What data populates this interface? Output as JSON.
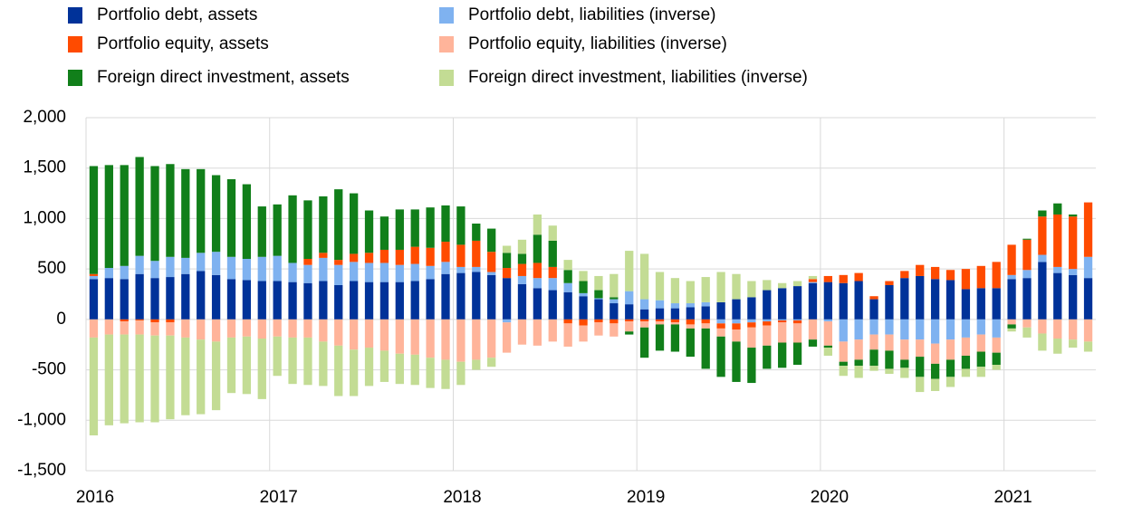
{
  "chart_data": {
    "type": "stacked-bar",
    "categories": [
      "2016",
      null,
      null,
      null,
      null,
      null,
      null,
      null,
      null,
      null,
      null,
      null,
      "2017",
      null,
      null,
      null,
      null,
      null,
      null,
      null,
      null,
      null,
      null,
      null,
      "2018",
      null,
      null,
      null,
      null,
      null,
      null,
      null,
      null,
      null,
      null,
      null,
      "2019",
      null,
      null,
      null,
      null,
      null,
      null,
      null,
      null,
      null,
      null,
      null,
      "2020",
      null,
      null,
      null,
      null,
      null,
      null,
      null,
      null,
      null,
      null,
      null,
      "2021",
      null,
      null,
      null,
      null,
      null
    ],
    "series": [
      {
        "name": "Portfolio debt, assets",
        "color": "#003299",
        "values": [
          400,
          410,
          400,
          450,
          410,
          420,
          450,
          480,
          440,
          400,
          390,
          380,
          380,
          370,
          360,
          380,
          340,
          380,
          370,
          370,
          370,
          380,
          400,
          450,
          460,
          470,
          440,
          410,
          350,
          310,
          290,
          270,
          230,
          200,
          160,
          150,
          100,
          110,
          110,
          120,
          130,
          170,
          200,
          220,
          290,
          310,
          330,
          360,
          370,
          360,
          380,
          200,
          340,
          410,
          430,
          400,
          390,
          300,
          310,
          310,
          400,
          410,
          570,
          460,
          440,
          410
        ]
      },
      {
        "name": "Portfolio debt, liabilities (inverse)",
        "color": "#7fb2f0",
        "values": [
          30,
          100,
          130,
          180,
          170,
          200,
          160,
          180,
          230,
          220,
          210,
          240,
          250,
          190,
          180,
          230,
          200,
          190,
          190,
          190,
          170,
          170,
          130,
          120,
          60,
          50,
          30,
          -30,
          80,
          100,
          120,
          90,
          30,
          10,
          40,
          130,
          100,
          80,
          50,
          40,
          40,
          -40,
          -40,
          -30,
          -20,
          -10,
          -10,
          10,
          -20,
          -220,
          -200,
          -150,
          -150,
          -200,
          -200,
          -240,
          -200,
          -180,
          -150,
          -180,
          40,
          80,
          70,
          60,
          60,
          210
        ]
      },
      {
        "name": "Portfolio equity, assets",
        "color": "#ff4b00",
        "values": [
          20,
          0,
          -20,
          -10,
          -30,
          -30,
          0,
          0,
          0,
          0,
          0,
          0,
          0,
          0,
          60,
          50,
          50,
          80,
          100,
          130,
          150,
          170,
          180,
          200,
          220,
          260,
          200,
          100,
          120,
          150,
          110,
          -40,
          -60,
          -30,
          -40,
          -20,
          -20,
          -20,
          -30,
          -50,
          -40,
          -50,
          -60,
          -50,
          -40,
          -20,
          -30,
          30,
          60,
          80,
          80,
          30,
          40,
          70,
          110,
          120,
          100,
          200,
          220,
          260,
          300,
          300,
          380,
          520,
          520,
          540
        ]
      },
      {
        "name": "Portfolio equity, liabilities (inverse)",
        "color": "#ffb49a",
        "values": [
          -180,
          -150,
          -130,
          -140,
          -130,
          -130,
          -180,
          -200,
          -220,
          -180,
          -170,
          -190,
          -170,
          -180,
          -180,
          -220,
          -260,
          -300,
          -280,
          -310,
          -340,
          -350,
          -380,
          -400,
          -420,
          -400,
          -380,
          -300,
          -250,
          -260,
          -220,
          -230,
          -160,
          -130,
          -130,
          -100,
          -60,
          -30,
          -20,
          -40,
          -50,
          -80,
          -120,
          -200,
          -200,
          -200,
          -190,
          -200,
          -240,
          -200,
          -200,
          -150,
          -160,
          -200,
          -170,
          -200,
          -200,
          -180,
          -170,
          -150,
          -50,
          -80,
          -140,
          -190,
          -200,
          -220
        ]
      },
      {
        "name": "Foreign direct investment, assets",
        "color": "#117f1a",
        "values": [
          1070,
          1020,
          1000,
          980,
          940,
          920,
          880,
          830,
          760,
          770,
          740,
          500,
          510,
          670,
          580,
          560,
          700,
          600,
          420,
          330,
          400,
          370,
          400,
          360,
          380,
          170,
          230,
          150,
          100,
          280,
          260,
          130,
          120,
          80,
          20,
          -30,
          -300,
          -260,
          -270,
          -280,
          -400,
          -400,
          -400,
          -350,
          -230,
          -250,
          -220,
          -70,
          -20,
          -40,
          -60,
          -160,
          -180,
          -80,
          -200,
          -150,
          -170,
          -130,
          -150,
          -120,
          -40,
          10,
          60,
          110,
          20,
          0
        ]
      },
      {
        "name": "Foreign direct investment, liabilities (inverse)",
        "color": "#c3dc94",
        "values": [
          -970,
          -900,
          -880,
          -870,
          -860,
          -830,
          -770,
          -740,
          -680,
          -550,
          -570,
          -600,
          -390,
          -460,
          -470,
          -440,
          -500,
          -460,
          -380,
          -310,
          -300,
          -300,
          -300,
          -290,
          -230,
          -100,
          -90,
          70,
          140,
          200,
          150,
          100,
          100,
          140,
          230,
          400,
          450,
          280,
          250,
          220,
          250,
          300,
          250,
          160,
          100,
          50,
          50,
          30,
          -80,
          -100,
          -120,
          -50,
          -50,
          -100,
          -150,
          -120,
          -100,
          -80,
          -100,
          -50,
          -30,
          -100,
          -170,
          -150,
          -80,
          -100
        ]
      }
    ],
    "ylim": [
      -1500,
      2000
    ],
    "yticks": [
      {
        "value": -1500,
        "label": "-1,500"
      },
      {
        "value": -1000,
        "label": "-1,000"
      },
      -500,
      0,
      500,
      {
        "value": 1000,
        "label": "1,000"
      },
      {
        "value": 1500,
        "label": "1,500"
      },
      {
        "value": 2000,
        "label": "2,000"
      }
    ],
    "grid": true
  }
}
